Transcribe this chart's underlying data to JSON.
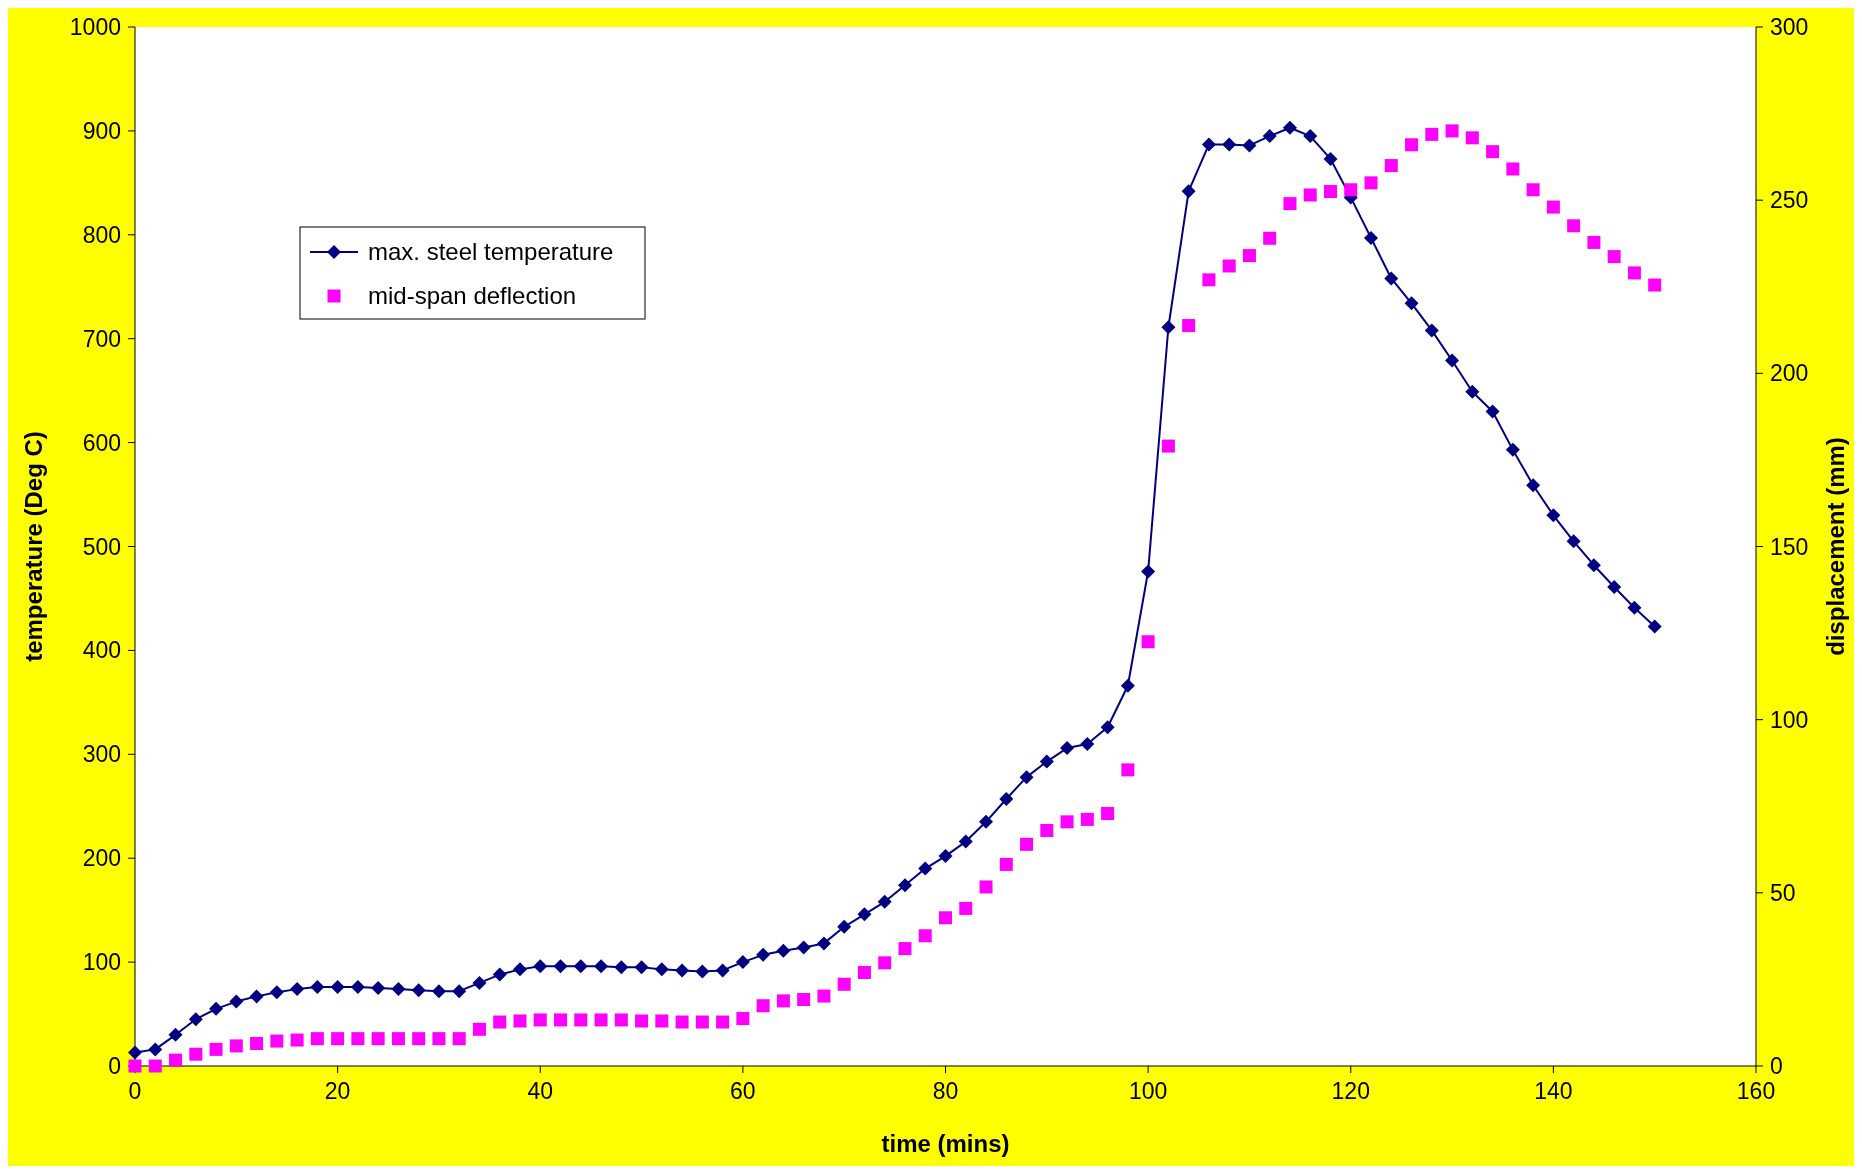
{
  "chart_data": {
    "type": "line",
    "xlabel": "time (mins)",
    "ylabel": "temperature (Deg C)",
    "y2label": "displacement (mm)",
    "x": [
      0,
      2,
      4,
      6,
      8,
      10,
      12,
      14,
      16,
      18,
      20,
      22,
      24,
      26,
      28,
      30,
      32,
      34,
      36,
      38,
      40,
      42,
      44,
      46,
      48,
      50,
      52,
      54,
      56,
      58,
      60,
      62,
      64,
      66,
      68,
      70,
      72,
      74,
      76,
      78,
      80,
      82,
      84,
      86,
      88,
      90,
      92,
      94,
      96,
      98,
      100,
      102,
      104,
      106,
      108,
      110,
      112,
      114,
      116,
      118,
      120,
      122,
      124,
      126,
      128,
      130,
      132,
      134,
      136,
      138,
      140,
      142,
      144,
      146,
      148,
      150
    ],
    "series": [
      {
        "name": "max. steel temperature",
        "marker": "diamond",
        "color": "#000080",
        "values": [
          13,
          16,
          30,
          45,
          55,
          62,
          67,
          71,
          74,
          76,
          76,
          76,
          75,
          74,
          73,
          72,
          72,
          80,
          88,
          93,
          96,
          96,
          96,
          96,
          95,
          95,
          93,
          92,
          91,
          92,
          100,
          107,
          111,
          114,
          118,
          134,
          146,
          158,
          174,
          190,
          202,
          216,
          235,
          257,
          278,
          293,
          306,
          310,
          326,
          366,
          476,
          711,
          842,
          887,
          887,
          886,
          895,
          903,
          895,
          873,
          836,
          797,
          758,
          734,
          708,
          679,
          649,
          630,
          593,
          559,
          530,
          505,
          482,
          461,
          441,
          423
        ]
      },
      {
        "name": "mid-span deflection",
        "type": "scatter",
        "marker": "square",
        "axis": "y2",
        "color": "#ff00ff",
        "values": [
          0,
          0,
          1.7,
          3.4,
          4.8,
          5.8,
          6.5,
          7.2,
          7.5,
          7.9,
          7.9,
          7.9,
          7.9,
          7.9,
          7.9,
          7.9,
          7.9,
          10.6,
          12.7,
          13,
          13.3,
          13.3,
          13.3,
          13.3,
          13.3,
          13,
          13,
          12.7,
          12.7,
          12.7,
          13.7,
          17.4,
          18.8,
          19.2,
          20.2,
          23.6,
          27,
          29.8,
          33.9,
          37.6,
          42.8,
          45.5,
          51.7,
          58.2,
          64,
          68,
          70.5,
          71.2,
          72.9,
          85.5,
          122.5,
          179,
          213.8,
          227,
          231,
          234,
          239,
          249,
          251.5,
          252.5,
          253,
          255,
          260,
          266,
          269,
          270,
          268,
          264,
          259,
          253,
          248,
          242.6,
          237.8,
          233.7,
          229,
          225.5
        ]
      }
    ],
    "xlim": [
      0,
      160
    ],
    "xticks": [
      0,
      20,
      40,
      60,
      80,
      100,
      120,
      140,
      160
    ],
    "ylim": [
      0,
      1000
    ],
    "yticks": [
      0,
      100,
      200,
      300,
      400,
      500,
      600,
      700,
      800,
      900,
      1000
    ],
    "y2lim": [
      0,
      300
    ],
    "y2ticks": [
      0,
      50,
      100,
      150,
      200,
      250,
      300
    ],
    "grid": false,
    "legend": "top left"
  }
}
